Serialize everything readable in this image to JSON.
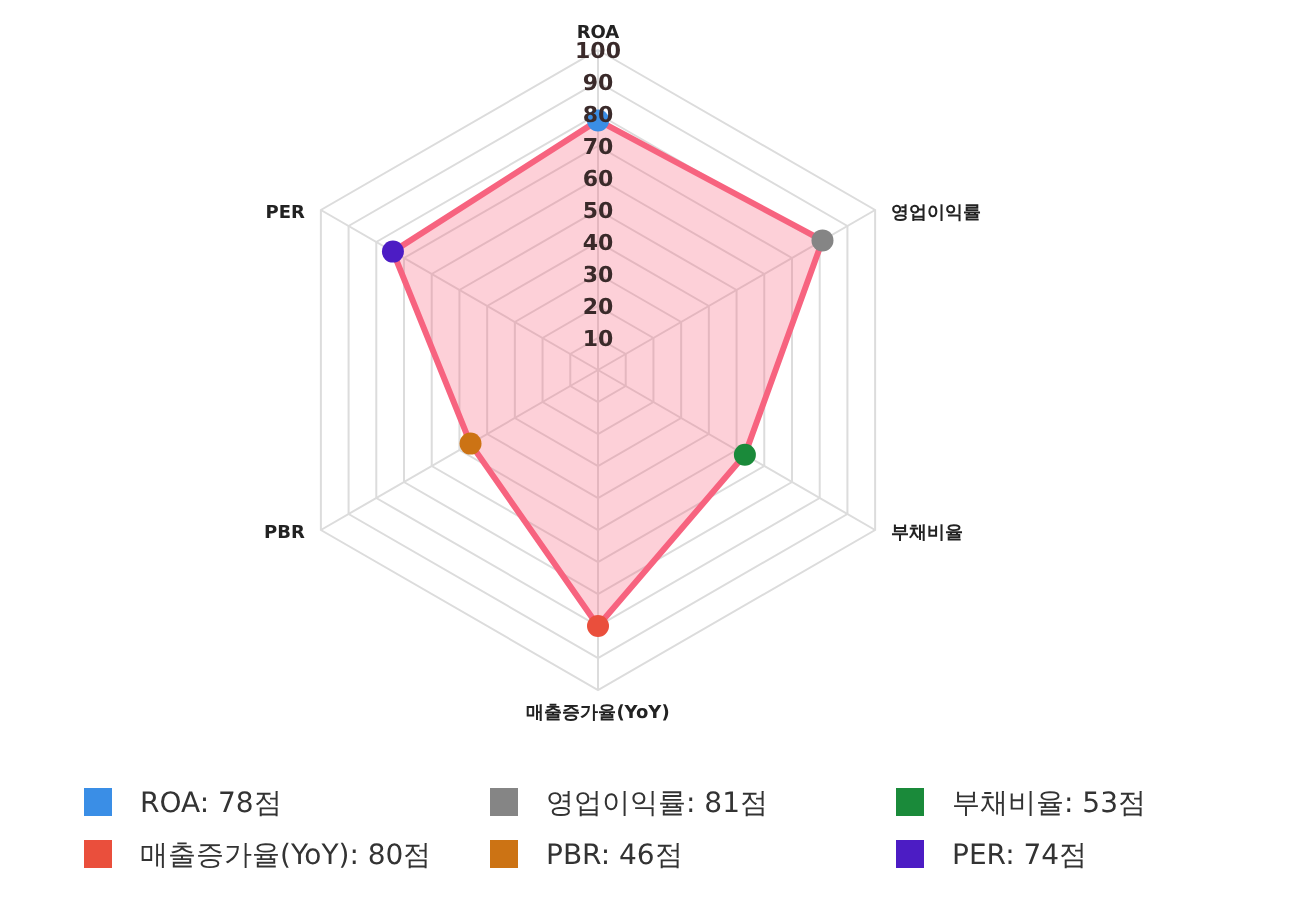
{
  "chart_data": {
    "type": "radar",
    "categories": [
      "ROA",
      "영업이익률",
      "부채비율",
      "매출증가율(YoY)",
      "PBR",
      "PER"
    ],
    "series": [
      {
        "color": "#f7637f",
        "values": [
          78,
          81,
          53,
          80,
          46,
          74
        ],
        "colors": [
          "#3a8ee6",
          "#858585",
          "#1a8a3a",
          "#ea4f3c",
          "#cc7314",
          "#4c1cc4"
        ]
      }
    ],
    "annotations": [
      "ROA: 78점",
      "영업이익률: 81점",
      "부채비율: 53점",
      "매출증가율(YoY): 80점",
      "PBR: 46점",
      "PER: 74점"
    ],
    "ylim": [
      0,
      100
    ],
    "yticks": [
      10,
      20,
      30,
      40,
      50,
      60,
      70,
      80,
      90,
      100
    ],
    "grid": true,
    "marker": "circle"
  }
}
